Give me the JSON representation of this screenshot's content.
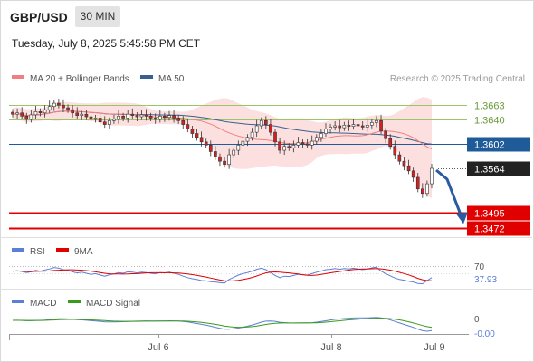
{
  "header": {
    "symbol": "GBP/USD",
    "timeframe": "30 MIN",
    "datetime": "Tuesday, July 8, 2025 5:45:58 PM CET"
  },
  "colors": {
    "ma20": "#f08080",
    "ma50": "#3a5f8f",
    "bands_fill": "#fbd5d5",
    "resistance": "#9bc46a",
    "pivot": "#1f5b99",
    "support": "#e00000",
    "last": "#222222",
    "arrow": "#2a5aa0",
    "rsi": "#5b7fd6",
    "rsi_ma": "#e00000",
    "macd": "#5b7fd6",
    "macd_signal": "#3a9a1a",
    "candle_up": "#ffffff",
    "candle_down": "#d42020"
  },
  "legend": {
    "ma20_label": "MA 20 + Bollinger Bands",
    "ma50_label": "MA 50",
    "credit": "Research © 2025 Trading Central"
  },
  "chart_data": {
    "type": "candlestick",
    "x_tick_labels": [
      "Jul 6",
      "Jul 8",
      "Jul 9"
    ],
    "price_range": [
      1.344,
      1.367
    ],
    "levels": [
      {
        "value": 1.3663,
        "label": "1.3663",
        "kind": "resistance"
      },
      {
        "value": 1.364,
        "label": "1.3640",
        "kind": "resistance"
      },
      {
        "value": 1.3602,
        "label": "1.3602",
        "kind": "pivot"
      },
      {
        "value": 1.3564,
        "label": "1.3564",
        "kind": "last"
      },
      {
        "value": 1.3495,
        "label": "1.3495",
        "kind": "support"
      },
      {
        "value": 1.3472,
        "label": "1.3472",
        "kind": "support"
      }
    ],
    "projection": {
      "from": 1.3564,
      "to": 1.3482
    },
    "candles_close": [
      1.3648,
      1.365,
      1.3645,
      1.364,
      1.3647,
      1.3652,
      1.365,
      1.3655,
      1.366,
      1.3665,
      1.3662,
      1.3658,
      1.3655,
      1.365,
      1.3646,
      1.3648,
      1.3644,
      1.364,
      1.3642,
      1.3636,
      1.3632,
      1.3638,
      1.364,
      1.3645,
      1.3642,
      1.3648,
      1.3646,
      1.3644,
      1.3647,
      1.3645,
      1.3642,
      1.364,
      1.3645,
      1.3643,
      1.3646,
      1.3642,
      1.3638,
      1.3632,
      1.3625,
      1.3618,
      1.3612,
      1.3605,
      1.36,
      1.359,
      1.3582,
      1.3575,
      1.357,
      1.3585,
      1.3592,
      1.36,
      1.3606,
      1.3612,
      1.362,
      1.363,
      1.3638,
      1.3632,
      1.362,
      1.3605,
      1.3592,
      1.3598,
      1.3596,
      1.36,
      1.3604,
      1.3602,
      1.36,
      1.3606,
      1.3612,
      1.3618,
      1.3625,
      1.3628,
      1.363,
      1.3627,
      1.3631,
      1.3629,
      1.3632,
      1.363,
      1.3628,
      1.3631,
      1.3635,
      1.3638,
      1.3622,
      1.361,
      1.3598,
      1.3585,
      1.3575,
      1.3568,
      1.356,
      1.355,
      1.3532,
      1.3525,
      1.354,
      1.3564
    ],
    "rsi": {
      "label": "RSI",
      "ma_label": "9MA",
      "levels": [
        "70",
        "37.93"
      ],
      "values": [
        56,
        57,
        55,
        52,
        54,
        58,
        56,
        59,
        62,
        66,
        64,
        60,
        58,
        54,
        51,
        53,
        50,
        47,
        49,
        45,
        42,
        46,
        48,
        52,
        50,
        54,
        53,
        51,
        53,
        52,
        50,
        48,
        52,
        51,
        53,
        50,
        47,
        42,
        38,
        35,
        33,
        30,
        29,
        27,
        26,
        24,
        23,
        33,
        39,
        45,
        49,
        52,
        56,
        61,
        64,
        60,
        52,
        44,
        38,
        42,
        41,
        44,
        47,
        46,
        45,
        49,
        53,
        56,
        60,
        61,
        63,
        61,
        63,
        62,
        64,
        62,
        60,
        62,
        65,
        67,
        56,
        49,
        43,
        37,
        33,
        31,
        28,
        26,
        22,
        21,
        30,
        37.93
      ]
    },
    "macd": {
      "label": "MACD",
      "signal_label": "MACD Signal",
      "levels": [
        "0",
        "-0.00"
      ]
    }
  }
}
